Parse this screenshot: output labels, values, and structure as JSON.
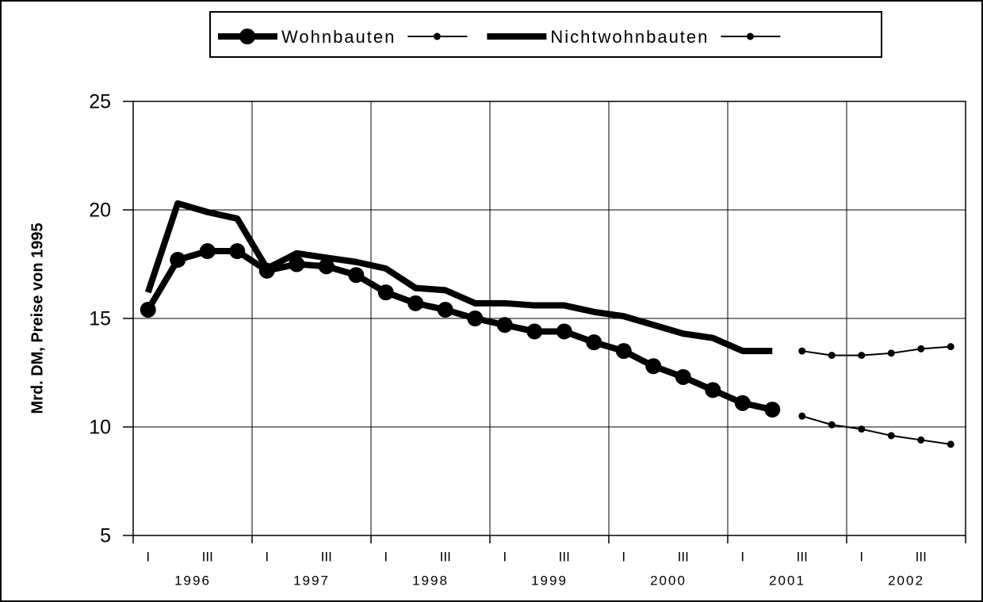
{
  "chart_data": {
    "type": "line",
    "y_label": "Mrd. DM, Preise von 1995",
    "categories": [
      "I",
      null,
      "III",
      null,
      "I",
      null,
      "III",
      null,
      "I",
      null,
      "III",
      null,
      "I",
      null,
      "III",
      null,
      "I",
      null,
      "III",
      null,
      "I",
      null,
      "III",
      null,
      "I",
      null,
      "III",
      null
    ],
    "years": [
      "1996",
      "1997",
      "1998",
      "1999",
      "2000",
      "2001",
      "2002"
    ],
    "ylim": [
      5,
      25
    ],
    "yticks": [
      5,
      10,
      15,
      20,
      25
    ],
    "grid": true,
    "series": [
      {
        "name": "Wohnbauten",
        "color": "#000000",
        "style": "thick",
        "marker": "large",
        "values": [
          15.4,
          17.7,
          18.1,
          18.1,
          17.2,
          17.5,
          17.4,
          17.0,
          16.2,
          15.7,
          15.4,
          15.0,
          14.7,
          14.4,
          14.4,
          13.9,
          13.5,
          12.8,
          12.3,
          11.7,
          11.1,
          10.8,
          null,
          null,
          null,
          null,
          null,
          null
        ]
      },
      {
        "color": "#000000",
        "style": "thin",
        "marker": "small",
        "values": [
          null,
          null,
          null,
          null,
          null,
          null,
          null,
          null,
          null,
          null,
          null,
          null,
          null,
          null,
          null,
          null,
          null,
          null,
          null,
          null,
          null,
          null,
          10.5,
          10.1,
          9.9,
          9.6,
          9.4,
          9.2
        ]
      },
      {
        "name": "Nichtwohnbauten",
        "color": "#000000",
        "style": "thick",
        "marker": "none",
        "values": [
          16.2,
          20.3,
          19.9,
          19.6,
          17.3,
          18.0,
          17.8,
          17.6,
          17.3,
          16.4,
          16.3,
          15.7,
          15.7,
          15.6,
          15.6,
          15.3,
          15.1,
          14.7,
          14.3,
          14.1,
          13.5,
          13.5,
          null,
          null,
          null,
          null,
          null,
          null
        ]
      },
      {
        "color": "#000000",
        "style": "thin",
        "marker": "small",
        "values": [
          null,
          null,
          null,
          null,
          null,
          null,
          null,
          null,
          null,
          null,
          null,
          null,
          null,
          null,
          null,
          null,
          null,
          null,
          null,
          null,
          null,
          null,
          13.5,
          13.3,
          13.3,
          13.4,
          13.6,
          13.7
        ]
      }
    ]
  }
}
